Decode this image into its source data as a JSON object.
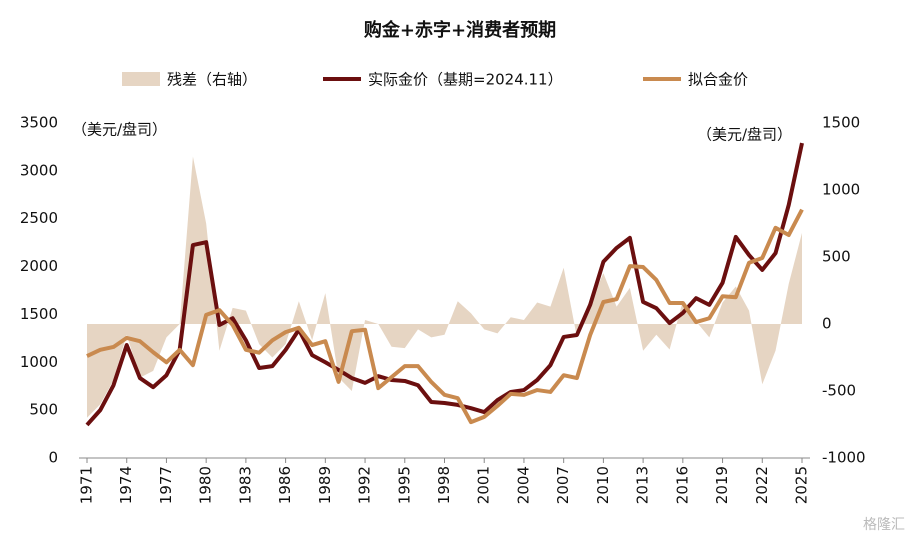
{
  "chart_data": {
    "type": "line",
    "title": "购金+赤字+消费者预期",
    "y_unit_label": "（美元/盘司）",
    "y2_unit_label": "（美元/盘司）",
    "watermark": "格隆汇",
    "x": [
      1971,
      1972,
      1973,
      1974,
      1975,
      1976,
      1977,
      1978,
      1979,
      1980,
      1981,
      1982,
      1983,
      1984,
      1985,
      1986,
      1987,
      1988,
      1989,
      1990,
      1991,
      1992,
      1993,
      1994,
      1995,
      1996,
      1997,
      1998,
      1999,
      2000,
      2001,
      2002,
      2003,
      2004,
      2005,
      2006,
      2007,
      2008,
      2009,
      2010,
      2011,
      2012,
      2013,
      2014,
      2015,
      2016,
      2017,
      2018,
      2019,
      2020,
      2021,
      2022,
      2023,
      2024,
      2025
    ],
    "xlim": [
      1971,
      2025
    ],
    "xticks": [
      1971,
      1974,
      1977,
      1980,
      1983,
      1986,
      1989,
      1992,
      1995,
      1998,
      2001,
      2004,
      2007,
      2010,
      2013,
      2016,
      2019,
      2022,
      2025
    ],
    "ylim": [
      0,
      3500
    ],
    "yticks": [
      0,
      500,
      1000,
      1500,
      2000,
      2500,
      3000,
      3500
    ],
    "y2lim": [
      -1000,
      1500
    ],
    "y2ticks": [
      -1000,
      -500,
      0,
      500,
      1000,
      1500
    ],
    "series": [
      {
        "name": "残差（右轴）",
        "color": "#e6d5c3",
        "style": "area",
        "axis": "y2",
        "values": [
          -700,
          -600,
          -420,
          -80,
          -400,
          -350,
          -100,
          0,
          1250,
          750,
          -200,
          120,
          100,
          -150,
          -250,
          -150,
          170,
          -120,
          230,
          -400,
          -500,
          30,
          0,
          -170,
          -180,
          -40,
          -100,
          -80,
          170,
          80,
          -40,
          -70,
          50,
          30,
          160,
          130,
          420,
          -100,
          150,
          380,
          130,
          270,
          -200,
          -80,
          -190,
          170,
          20,
          -100,
          160,
          280,
          100,
          -450,
          -200,
          300,
          680
        ]
      },
      {
        "name": "实际金价（基期=2024.11）",
        "color": "#6b0f0f",
        "style": "line",
        "axis": "y",
        "values": [
          345,
          500,
          760,
          1180,
          835,
          740,
          865,
          1130,
          2225,
          2255,
          1390,
          1460,
          1230,
          940,
          960,
          1130,
          1340,
          1075,
          1000,
          920,
          835,
          785,
          855,
          815,
          805,
          760,
          585,
          575,
          555,
          520,
          480,
          605,
          690,
          710,
          815,
          970,
          1265,
          1285,
          1600,
          2050,
          2195,
          2300,
          1630,
          1565,
          1410,
          1515,
          1670,
          1600,
          1830,
          2310,
          2120,
          1965,
          2140,
          2645,
          3290
        ]
      },
      {
        "name": "拟合金价",
        "color": "#c98a4f",
        "style": "line",
        "axis": "y",
        "values": [
          1065,
          1130,
          1160,
          1255,
          1220,
          1105,
          1000,
          1130,
          970,
          1495,
          1545,
          1390,
          1130,
          1100,
          1230,
          1315,
          1360,
          1180,
          1220,
          795,
          1325,
          1340,
          730,
          845,
          960,
          960,
          795,
          660,
          625,
          375,
          430,
          545,
          670,
          660,
          710,
          690,
          865,
          835,
          1285,
          1630,
          1660,
          2005,
          1995,
          1860,
          1620,
          1620,
          1420,
          1460,
          1690,
          1680,
          2040,
          2090,
          2405,
          2330,
          2595
        ]
      }
    ]
  }
}
